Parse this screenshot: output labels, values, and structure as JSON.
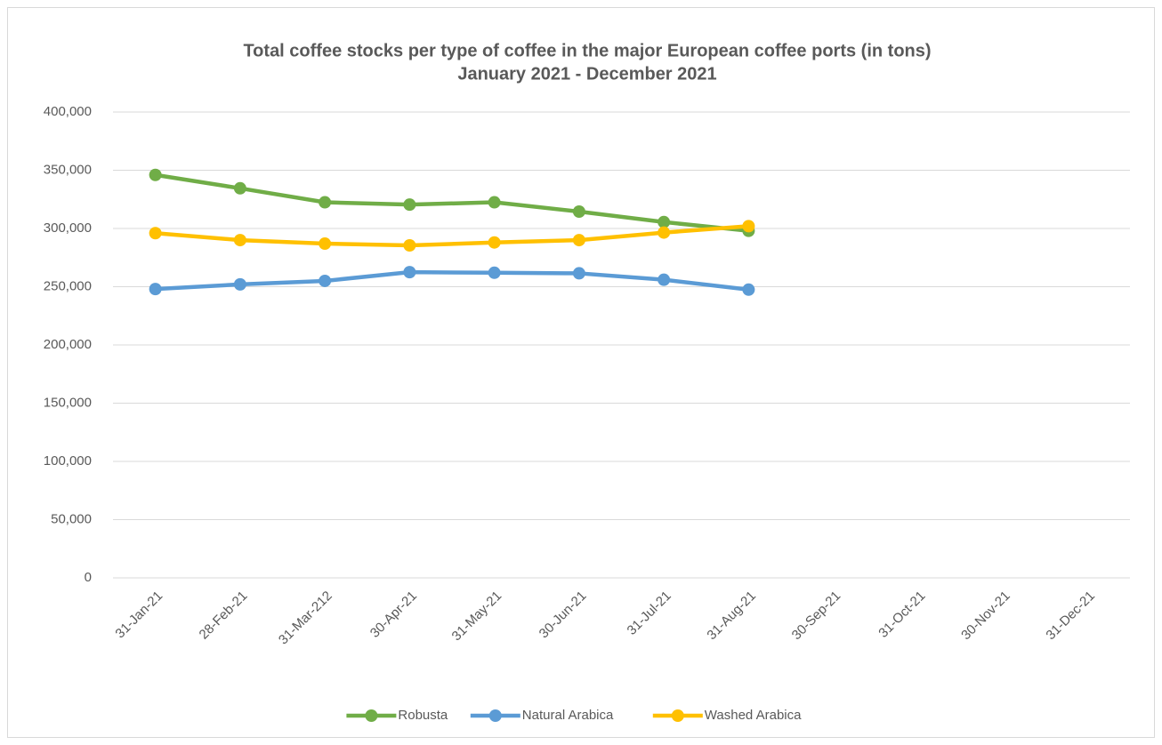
{
  "chart_data": {
    "type": "line",
    "title": "Total coffee stocks per type of coffee in the major European coffee ports (in tons)",
    "subtitle": "January 2021 - December 2021",
    "categories": [
      "31-Jan-21",
      "28-Feb-21",
      "31-Mar-212",
      "30-Apr-21",
      "31-May-21",
      "30-Jun-21",
      "31-Jul-21",
      "31-Aug-21",
      "30-Sep-21",
      "31-Oct-21",
      "30-Nov-21",
      "31-Dec-21"
    ],
    "series": [
      {
        "name": "Robusta",
        "color": "#70ad47",
        "values": [
          346000,
          334500,
          322500,
          320500,
          322500,
          314500,
          305500,
          298000,
          null,
          null,
          null,
          null
        ]
      },
      {
        "name": "Natural Arabica",
        "color": "#5b9bd5",
        "values": [
          248000,
          252000,
          255000,
          262500,
          262000,
          261500,
          256000,
          247500,
          null,
          null,
          null,
          null
        ]
      },
      {
        "name": "Washed Arabica",
        "color": "#ffc000",
        "values": [
          296000,
          290000,
          287000,
          285500,
          288000,
          290000,
          296500,
          302000,
          null,
          null,
          null,
          null
        ]
      }
    ],
    "ylim": [
      0,
      400000
    ],
    "yticks": [
      0,
      {
        "value": 50000,
        "label": "50,000"
      },
      {
        "value": 100000,
        "label": "100,000"
      },
      {
        "value": 150000,
        "label": "150,000"
      },
      {
        "value": 200000,
        "label": "200,000"
      },
      {
        "value": 250000,
        "label": "250,000"
      },
      {
        "value": 300000,
        "label": "300,000"
      },
      {
        "value": 350000,
        "label": "350,000"
      },
      {
        "value": 400000,
        "label": "400,000"
      }
    ],
    "grid": true,
    "legend": "bottom"
  }
}
